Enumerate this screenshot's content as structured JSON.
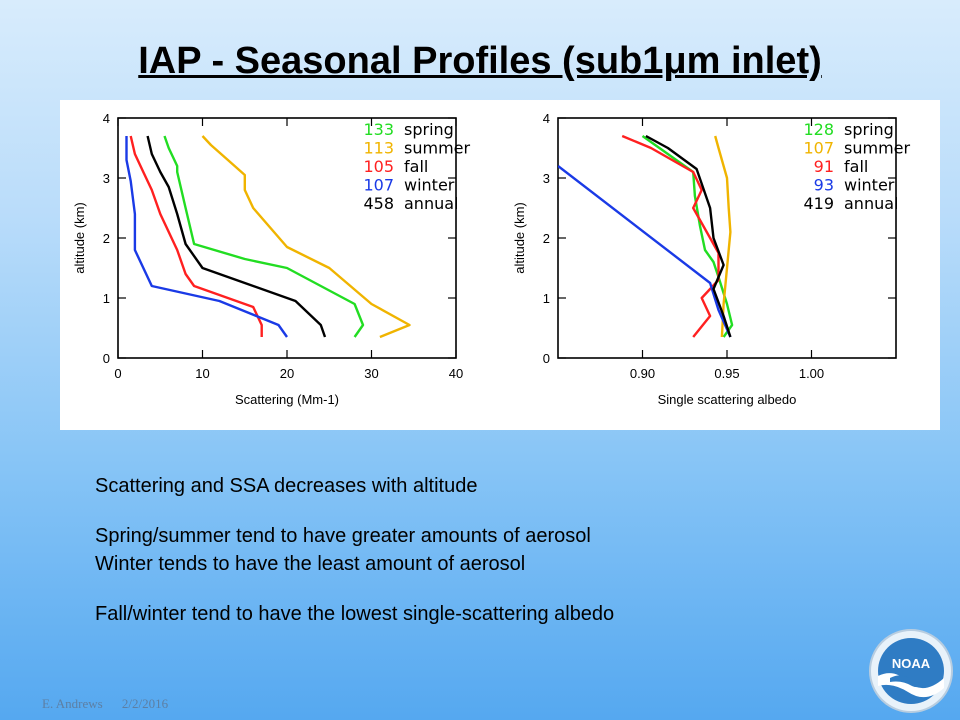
{
  "slide": {
    "title": "IAP - Seasonal Profiles (sub1μm inlet)",
    "bullets": [
      "Scattering and SSA decreases with altitude",
      "Spring/summer tend to have greater amounts of aerosol",
      "Winter tends to have the least amount of aerosol",
      "Fall/winter tend to have the lowest single-scattering albedo"
    ],
    "footer": {
      "author": "E. Andrews",
      "date": "2/2/2016"
    },
    "logo_text": "NOAA"
  },
  "chart_data": [
    {
      "type": "line",
      "xlabel": "Scattering (Mm-1)",
      "ylabel": "altitude (km)",
      "xlim": [
        0,
        40
      ],
      "ylim": [
        0,
        4
      ],
      "xticks": [
        0,
        10,
        20,
        30,
        40
      ],
      "yticks": [
        0,
        1,
        2,
        3,
        4
      ],
      "legend_position": "top-right",
      "series": [
        {
          "name": "spring",
          "count": "133",
          "color": "#22dd22",
          "points": [
            [
              28,
              0.35
            ],
            [
              29,
              0.55
            ],
            [
              28,
              0.9
            ],
            [
              20,
              1.5
            ],
            [
              15,
              1.65
            ],
            [
              9,
              1.9
            ],
            [
              8,
              2.5
            ],
            [
              7,
              3.1
            ],
            [
              7,
              3.2
            ],
            [
              6,
              3.5
            ],
            [
              5.5,
              3.7
            ]
          ]
        },
        {
          "name": "summer",
          "count": "113",
          "color": "#f0b400",
          "points": [
            [
              31,
              0.35
            ],
            [
              34.5,
              0.55
            ],
            [
              30,
              0.9
            ],
            [
              25,
              1.5
            ],
            [
              20,
              1.85
            ],
            [
              16,
              2.5
            ],
            [
              15,
              2.8
            ],
            [
              15,
              3.05
            ],
            [
              13,
              3.3
            ],
            [
              11,
              3.55
            ],
            [
              10,
              3.7
            ]
          ]
        },
        {
          "name": "fall",
          "count": "105",
          "color": "#ff2020",
          "points": [
            [
              17,
              0.35
            ],
            [
              17,
              0.55
            ],
            [
              16,
              0.85
            ],
            [
              9,
              1.2
            ],
            [
              8,
              1.4
            ],
            [
              7,
              1.8
            ],
            [
              5,
              2.4
            ],
            [
              4,
              2.8
            ],
            [
              3,
              3.1
            ],
            [
              2,
              3.4
            ],
            [
              1.5,
              3.7
            ]
          ]
        },
        {
          "name": "winter",
          "count": "107",
          "color": "#1a3ae6",
          "points": [
            [
              20,
              0.35
            ],
            [
              19,
              0.55
            ],
            [
              12,
              0.95
            ],
            [
              4,
              1.2
            ],
            [
              2,
              1.8
            ],
            [
              2,
              2.4
            ],
            [
              1.5,
              2.95
            ],
            [
              1,
              3.3
            ],
            [
              1,
              3.5
            ],
            [
              1,
              3.7
            ]
          ]
        },
        {
          "name": "annual",
          "count": "458",
          "color": "#000000",
          "points": [
            [
              24.5,
              0.35
            ],
            [
              24,
              0.55
            ],
            [
              21,
              0.95
            ],
            [
              15,
              1.25
            ],
            [
              10,
              1.5
            ],
            [
              8,
              1.9
            ],
            [
              7,
              2.4
            ],
            [
              6,
              2.85
            ],
            [
              5,
              3.1
            ],
            [
              4,
              3.4
            ],
            [
              3.5,
              3.7
            ]
          ]
        }
      ]
    },
    {
      "type": "line",
      "xlabel": "Single scattering albedo",
      "ylabel": "altitude (km)",
      "xlim": [
        0.85,
        1.05
      ],
      "ylim": [
        0,
        4
      ],
      "xticks": [
        0.9,
        0.95,
        1.0
      ],
      "xtick_labels": [
        "0.90",
        "0.95",
        "1.00"
      ],
      "yticks": [
        0,
        1,
        2,
        3,
        4
      ],
      "legend_position": "top-right",
      "series": [
        {
          "name": "spring",
          "count": "128",
          "color": "#22dd22",
          "points": [
            [
              0.948,
              0.35
            ],
            [
              0.953,
              0.55
            ],
            [
              0.95,
              0.9
            ],
            [
              0.945,
              1.35
            ],
            [
              0.942,
              1.6
            ],
            [
              0.937,
              1.8
            ],
            [
              0.934,
              2.2
            ],
            [
              0.931,
              2.7
            ],
            [
              0.93,
              3.1
            ],
            [
              0.91,
              3.5
            ],
            [
              0.9,
              3.7
            ]
          ]
        },
        {
          "name": "summer",
          "count": "107",
          "color": "#f0b400",
          "points": [
            [
              0.947,
              0.35
            ],
            [
              0.948,
              0.9
            ],
            [
              0.95,
              1.5
            ],
            [
              0.952,
              2.1
            ],
            [
              0.951,
              2.5
            ],
            [
              0.95,
              3.0
            ],
            [
              0.945,
              3.5
            ],
            [
              0.943,
              3.7
            ]
          ]
        },
        {
          "name": "fall",
          "count": "91",
          "color": "#ff2020",
          "points": [
            [
              0.93,
              0.35
            ],
            [
              0.94,
              0.7
            ],
            [
              0.935,
              1.0
            ],
            [
              0.945,
              1.3
            ],
            [
              0.945,
              1.75
            ],
            [
              0.94,
              2.0
            ],
            [
              0.93,
              2.5
            ],
            [
              0.935,
              2.8
            ],
            [
              0.93,
              3.1
            ],
            [
              0.905,
              3.5
            ],
            [
              0.888,
              3.7
            ]
          ]
        },
        {
          "name": "winter",
          "count": "93",
          "color": "#1a3ae6",
          "points": [
            [
              0.952,
              0.35
            ],
            [
              0.945,
              0.8
            ],
            [
              0.94,
              1.25
            ],
            [
              0.85,
              3.2
            ]
          ]
        },
        {
          "name": "annual",
          "count": "419",
          "color": "#000000",
          "points": [
            [
              0.952,
              0.35
            ],
            [
              0.948,
              0.7
            ],
            [
              0.942,
              1.15
            ],
            [
              0.948,
              1.55
            ],
            [
              0.942,
              2.0
            ],
            [
              0.94,
              2.5
            ],
            [
              0.932,
              3.15
            ],
            [
              0.915,
              3.5
            ],
            [
              0.902,
              3.7
            ]
          ]
        }
      ]
    }
  ]
}
